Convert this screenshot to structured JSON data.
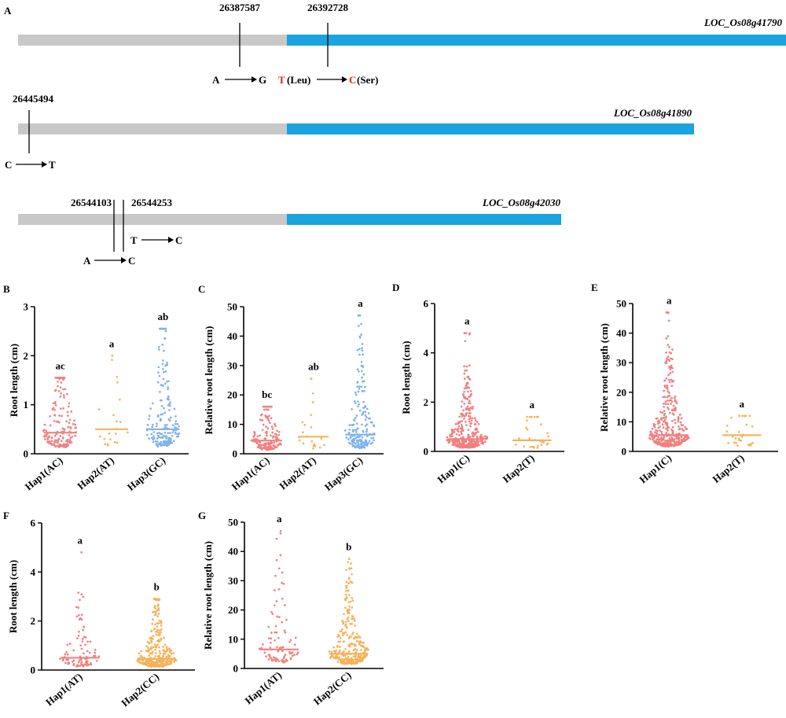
{
  "panel_a": {
    "label": "A",
    "colors": {
      "utr": "#c8c8c8",
      "cds": "#1aa3df",
      "mutant_base": "#e02020"
    },
    "genes": [
      {
        "name": "LOC_Os08g41790",
        "positions": [
          "26387587",
          "26392728"
        ],
        "mutations": [
          {
            "from": "A",
            "to": "G"
          },
          {
            "from": "T",
            "from_aa": "(Leu)",
            "to": "C",
            "to_aa": "(Ser)"
          }
        ]
      },
      {
        "name": "LOC_Os08g41890",
        "positions": [
          "26445494"
        ],
        "mutations": [
          {
            "from": "C",
            "to": "T"
          }
        ]
      },
      {
        "name": "LOC_Os08g42030",
        "positions": [
          "26544103",
          "26544253"
        ],
        "mutations": [
          {
            "from": "A",
            "to": "C"
          },
          {
            "from": "T",
            "to": "C"
          }
        ]
      }
    ]
  },
  "chart_data": [
    {
      "panel": "B",
      "type": "scatter",
      "ylabel": "Root length (cm)",
      "ylim": [
        0,
        3
      ],
      "yticks": [
        0,
        1,
        2,
        3
      ],
      "categories": [
        "Hap1(AC)",
        "Hap2(AT)",
        "Hap3(GC)"
      ],
      "series": [
        {
          "name": "Hap1(AC)",
          "color": "#f08080",
          "n": 170,
          "median": 0.43,
          "max": 1.55,
          "letter": "ac"
        },
        {
          "name": "Hap2(AT)",
          "color": "#f5b25b",
          "n": 22,
          "median": 0.5,
          "max": 2.0,
          "letter": "a"
        },
        {
          "name": "Hap3(GC)",
          "color": "#7fb3ea",
          "n": 190,
          "median": 0.5,
          "max": 2.55,
          "letter": "ab"
        }
      ]
    },
    {
      "panel": "C",
      "type": "scatter",
      "ylabel": "Relative root length (cm)",
      "ylim": [
        0,
        50
      ],
      "yticks": [
        0,
        10,
        20,
        30,
        40,
        50
      ],
      "categories": [
        "Hap1(AC)",
        "Hap2(AT)",
        "Hap3(GC)"
      ],
      "series": [
        {
          "name": "Hap1(AC)",
          "color": "#f08080",
          "n": 170,
          "median": 4.5,
          "max": 16,
          "letter": "bc"
        },
        {
          "name": "Hap2(AT)",
          "color": "#f5b25b",
          "n": 22,
          "median": 5.8,
          "max": 25.5,
          "letter": "ab"
        },
        {
          "name": "Hap3(GC)",
          "color": "#7fb3ea",
          "n": 190,
          "median": 6.5,
          "max": 47,
          "letter": "a"
        }
      ]
    },
    {
      "panel": "D",
      "type": "scatter",
      "ylabel": "Root length (cm)",
      "ylim": [
        0,
        6
      ],
      "yticks": [
        0,
        2,
        4,
        6
      ],
      "categories": [
        "Hap1(C)",
        "Hap2(T)"
      ],
      "series": [
        {
          "name": "Hap1(C)",
          "color": "#f08080",
          "n": 360,
          "median": 0.5,
          "max": 4.8,
          "letter": "a"
        },
        {
          "name": "Hap2(T)",
          "color": "#f5b25b",
          "n": 30,
          "median": 0.45,
          "max": 1.4,
          "letter": "a"
        }
      ]
    },
    {
      "panel": "E",
      "type": "scatter",
      "ylabel": "Relative root length (cm)",
      "ylim": [
        0,
        50
      ],
      "yticks": [
        0,
        10,
        20,
        30,
        40,
        50
      ],
      "categories": [
        "Hap1(C)",
        "Hap2(T)"
      ],
      "series": [
        {
          "name": "Hap1(C)",
          "color": "#f08080",
          "n": 360,
          "median": 5.5,
          "max": 47,
          "letter": "a"
        },
        {
          "name": "Hap2(T)",
          "color": "#f5b25b",
          "n": 30,
          "median": 5.5,
          "max": 12,
          "letter": "a"
        }
      ]
    },
    {
      "panel": "F",
      "type": "scatter",
      "ylabel": "Root length (cm)",
      "ylim": [
        0,
        6
      ],
      "yticks": [
        0,
        2,
        4,
        6
      ],
      "categories": [
        "Hap1(AT)",
        "Hap2(CC)"
      ],
      "series": [
        {
          "name": "Hap1(AT)",
          "color": "#f08080",
          "n": 90,
          "median": 0.5,
          "max": 4.8,
          "letter": "a"
        },
        {
          "name": "Hap2(CC)",
          "color": "#f5b25b",
          "n": 300,
          "median": 0.45,
          "max": 2.9,
          "letter": "b"
        }
      ]
    },
    {
      "panel": "G",
      "type": "scatter",
      "ylabel": "Relative root length (cm)",
      "ylim": [
        0,
        50
      ],
      "yticks": [
        0,
        10,
        20,
        30,
        40,
        50
      ],
      "categories": [
        "Hap1(AT)",
        "Hap2(CC)"
      ],
      "series": [
        {
          "name": "Hap1(AT)",
          "color": "#f08080",
          "n": 90,
          "median": 6.5,
          "max": 47,
          "letter": "a"
        },
        {
          "name": "Hap2(CC)",
          "color": "#f5b25b",
          "n": 300,
          "median": 5.0,
          "max": 37.5,
          "letter": "b"
        }
      ]
    }
  ]
}
